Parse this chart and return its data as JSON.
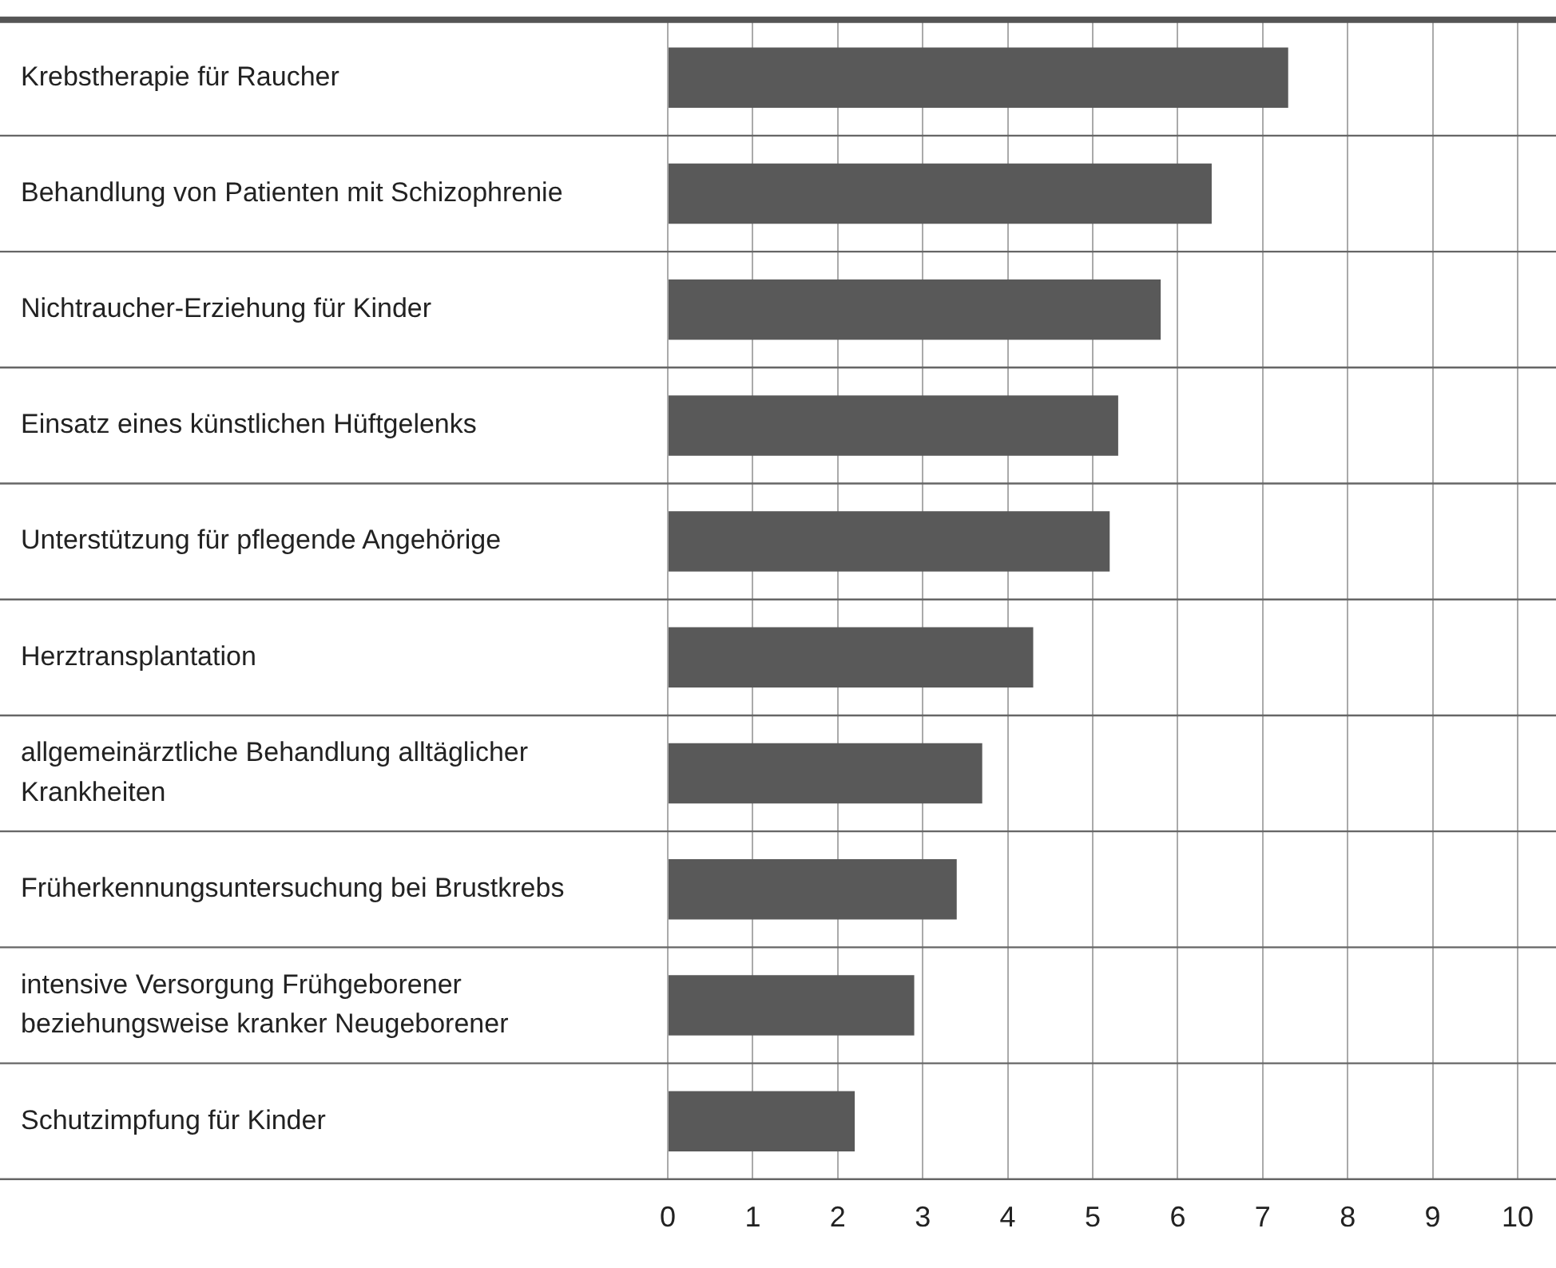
{
  "chart_data": {
    "type": "bar",
    "orientation": "horizontal",
    "categories": [
      "Krebstherapie für Raucher",
      "Behandlung von Patienten mit Schizophrenie",
      "Nichtraucher-Erziehung für Kinder",
      "Einsatz eines künstlichen Hüftgelenks",
      "Unterstützung für pflegende Angehörige",
      "Herztransplantation",
      "allgemeinärztliche Behandlung alltäglicher Krankheiten",
      "Früherkennungsuntersuchung bei Brustkrebs",
      "intensive Versorgung Frühgeborener beziehungsweise kranker Neugeborener",
      "Schutzimpfung für Kinder"
    ],
    "values": [
      7.3,
      6.4,
      5.8,
      5.3,
      5.2,
      4.3,
      3.7,
      3.4,
      2.9,
      2.2
    ],
    "color": "#595959",
    "xlim": [
      0,
      10
    ],
    "xticks": [
      0,
      1,
      2,
      3,
      4,
      5,
      6,
      7,
      8,
      9,
      10
    ],
    "grid": true
  }
}
